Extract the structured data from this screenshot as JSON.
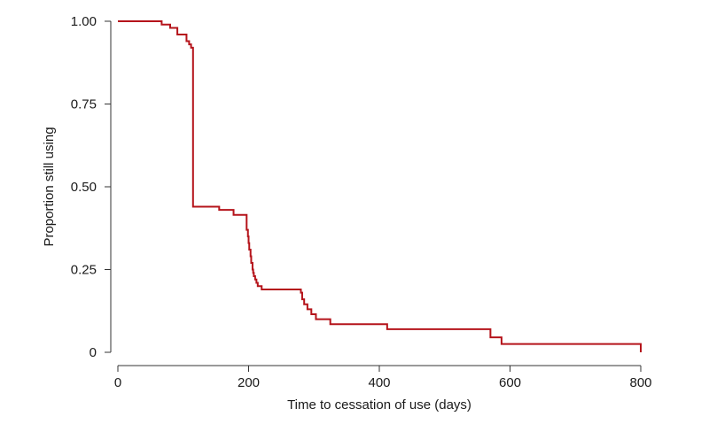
{
  "chart_data": {
    "type": "line",
    "title": "",
    "xlabel": "Time to cessation of use (days)",
    "ylabel": "Proportion still using",
    "xlim": [
      0,
      800
    ],
    "ylim": [
      0,
      1
    ],
    "grid": false,
    "x_ticks": [
      0,
      200,
      400,
      600,
      800
    ],
    "x_tick_labels": [
      "0",
      "200",
      "400",
      "600",
      "800"
    ],
    "y_ticks": [
      0,
      0.25,
      0.5,
      0.75,
      1.0
    ],
    "y_tick_labels": [
      "0",
      "0.25",
      "0.50",
      "0.75",
      "1.00"
    ],
    "colors": {
      "series": "#b5141b",
      "axis": "#333333"
    },
    "series": [
      {
        "step": "post",
        "x": [
          0,
          67,
          80,
          91,
          105,
          109,
          112,
          115,
          155,
          177,
          197,
          199,
          200,
          201,
          203,
          204,
          206,
          207,
          208,
          210,
          212,
          214,
          220,
          280,
          282,
          285,
          290,
          296,
          303,
          325,
          412,
          570,
          587,
          800
        ],
        "y": [
          1.0,
          0.99,
          0.98,
          0.96,
          0.94,
          0.93,
          0.92,
          0.44,
          0.43,
          0.415,
          0.37,
          0.35,
          0.33,
          0.31,
          0.29,
          0.27,
          0.25,
          0.24,
          0.23,
          0.22,
          0.21,
          0.2,
          0.19,
          0.18,
          0.16,
          0.145,
          0.13,
          0.115,
          0.1,
          0.085,
          0.07,
          0.045,
          0.025,
          0.0
        ]
      }
    ]
  }
}
